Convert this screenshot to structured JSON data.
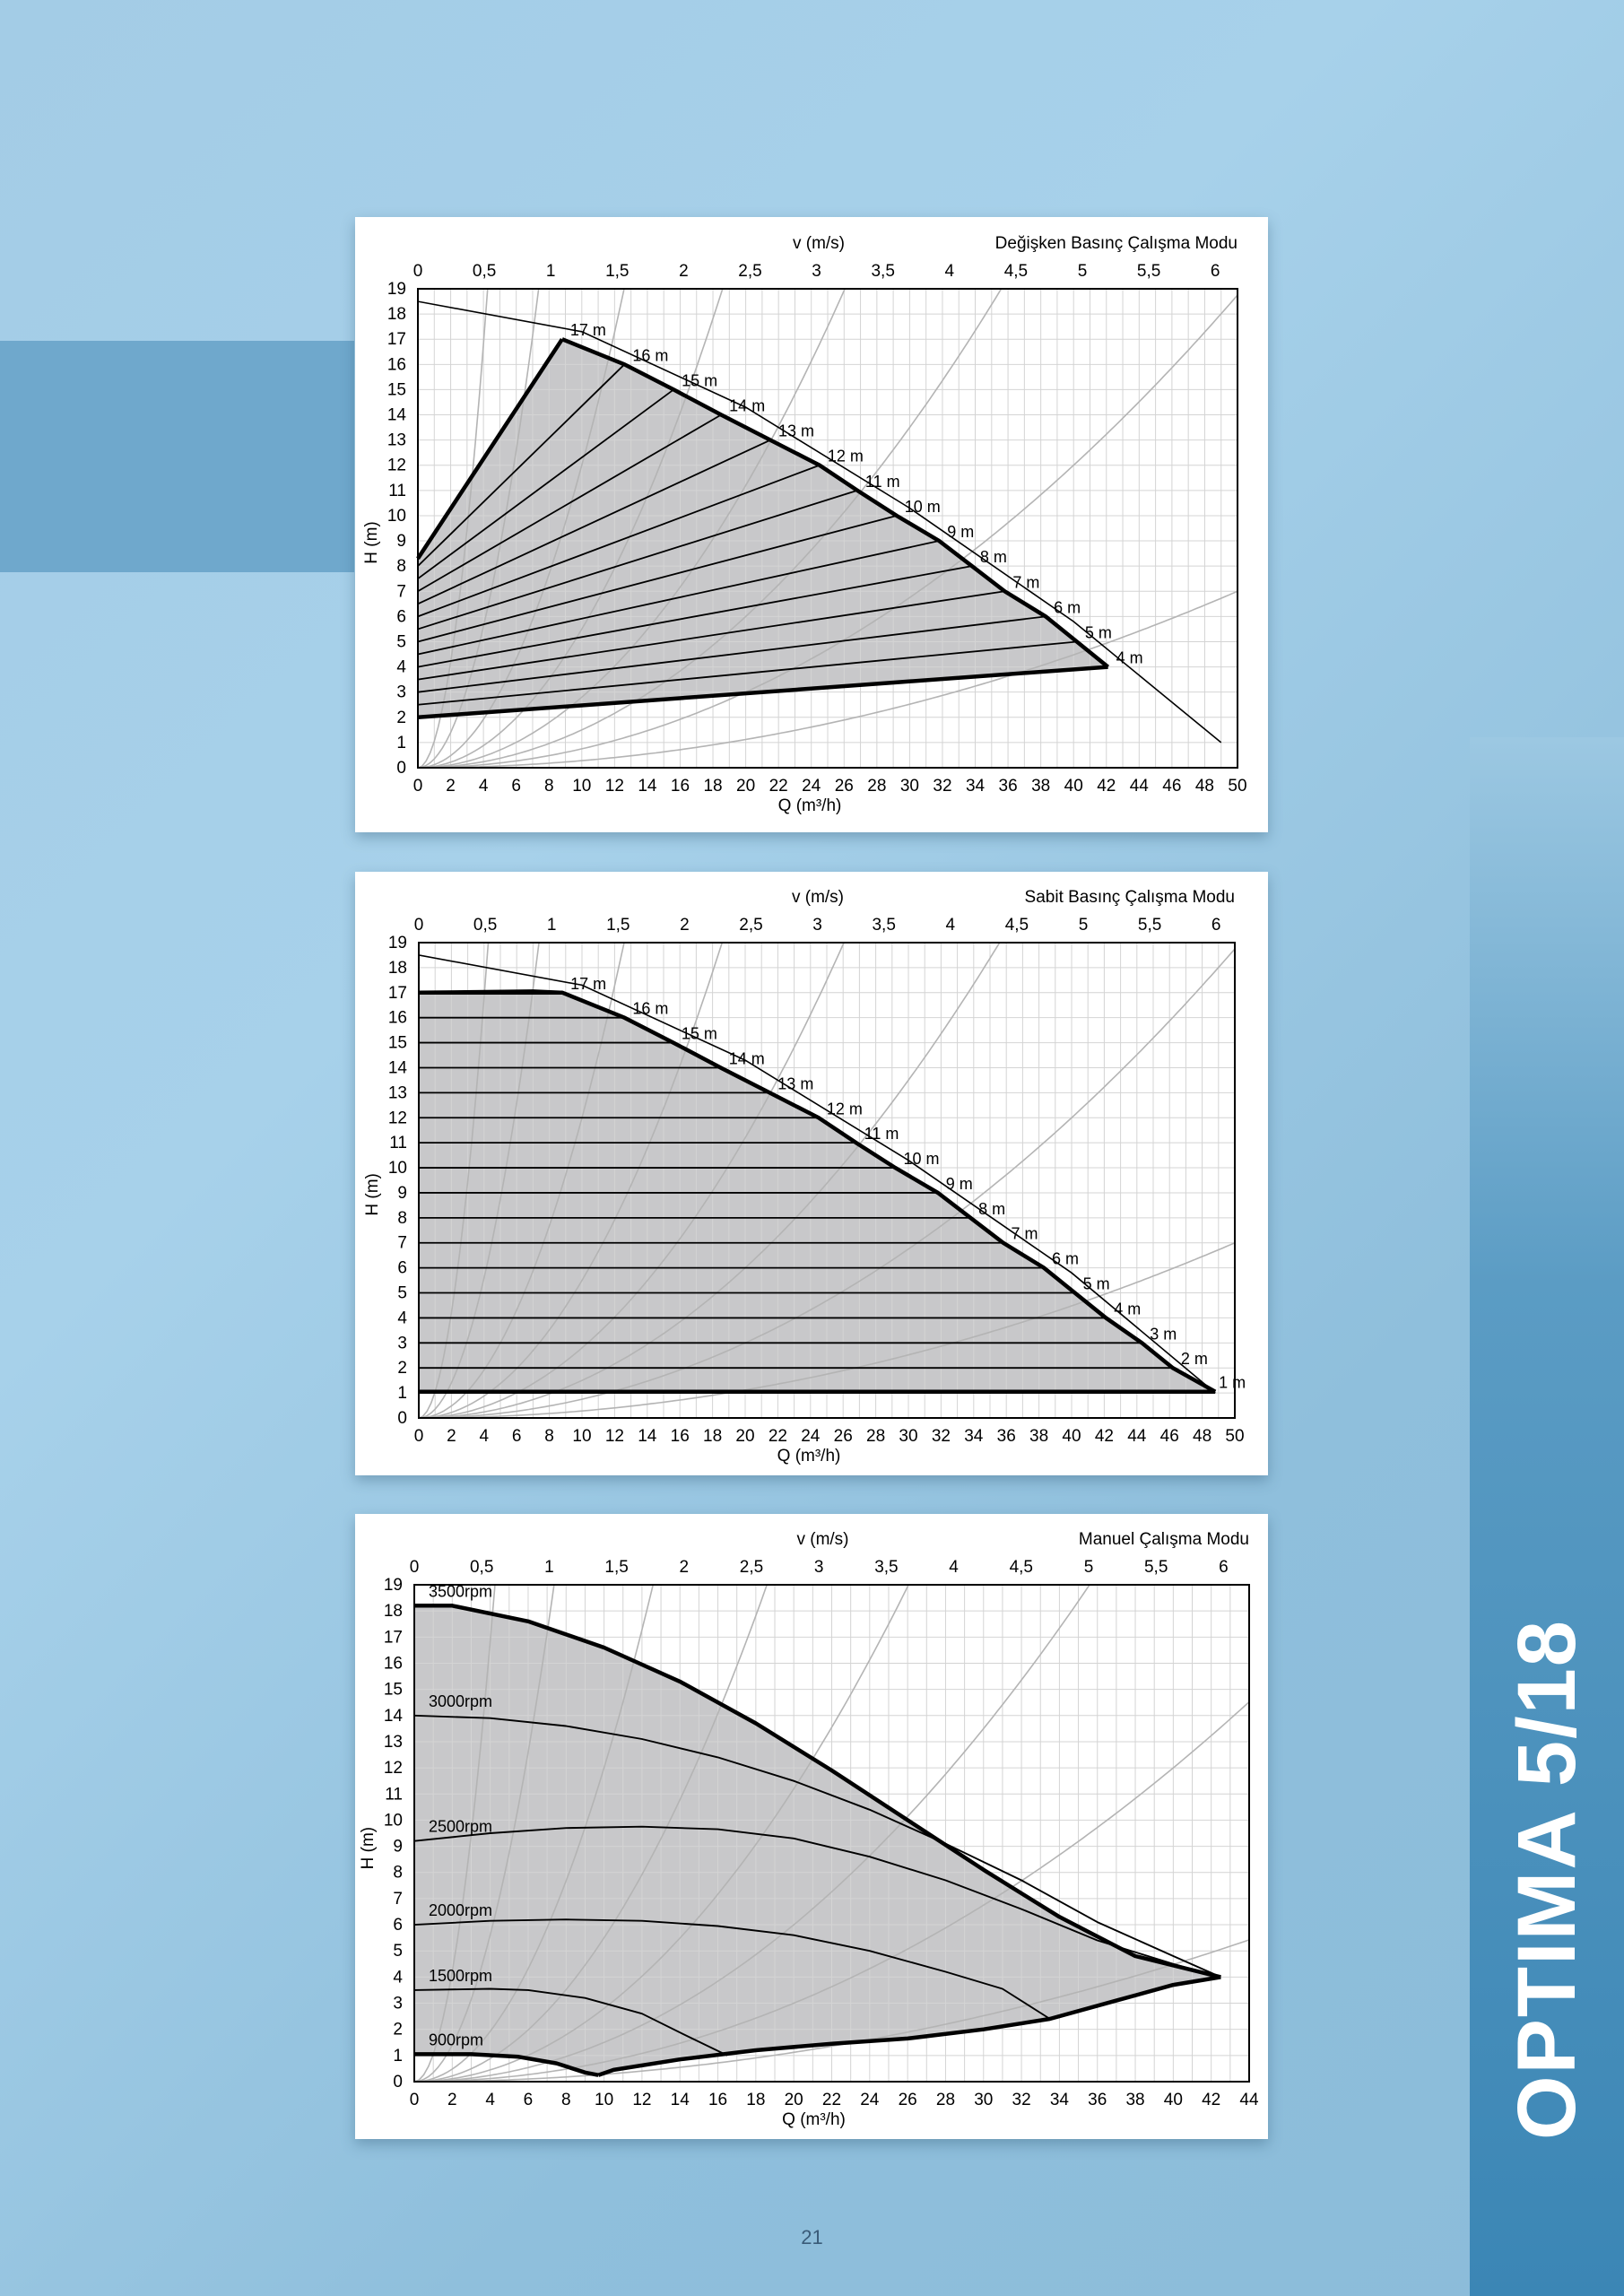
{
  "brand": "OPTIMA 5/18",
  "page_number": "21",
  "chart_data": [
    {
      "type": "line",
      "title": "Değişken Basınç Çalışma Modu",
      "top_axis_label": "v (m/s)",
      "top_ticks": [
        "0",
        "0,5",
        "1",
        "1,5",
        "2",
        "2,5",
        "3",
        "3,5",
        "4",
        "4,5",
        "5",
        "5,5",
        "6"
      ],
      "xlabel": "Q (m³/h)",
      "ylabel": "H (m)",
      "xlim": [
        0,
        50
      ],
      "ylim": [
        0,
        19
      ],
      "x_ticks": [
        0,
        2,
        4,
        6,
        8,
        10,
        12,
        14,
        16,
        18,
        20,
        22,
        24,
        26,
        28,
        30,
        32,
        34,
        36,
        38,
        40,
        42,
        44,
        46,
        48,
        50
      ],
      "y_ticks": [
        0,
        1,
        2,
        3,
        4,
        5,
        6,
        7,
        8,
        9,
        10,
        11,
        12,
        13,
        14,
        15,
        16,
        17,
        18,
        19
      ],
      "grid": true,
      "region_fill": "#c8c8ca",
      "max_curve": [
        [
          0,
          18.5
        ],
        [
          10,
          17.3
        ],
        [
          20,
          14.3
        ],
        [
          30,
          10.3
        ],
        [
          40,
          5.8
        ],
        [
          49,
          1.0
        ]
      ],
      "boundary": [
        [
          0,
          8.3
        ],
        [
          8.8,
          17
        ],
        [
          12.6,
          16
        ],
        [
          15.6,
          15
        ],
        [
          18.5,
          14
        ],
        [
          21.5,
          13
        ],
        [
          24.5,
          12
        ],
        [
          26.8,
          11
        ],
        [
          29.2,
          10
        ],
        [
          31.8,
          9
        ],
        [
          33.8,
          8
        ],
        [
          35.8,
          7
        ],
        [
          38.3,
          6
        ],
        [
          40.2,
          5
        ],
        [
          42.1,
          4
        ],
        [
          0,
          2
        ]
      ],
      "fan_lines": [
        {
          "label": "17 m",
          "start": [
            0,
            8.3
          ],
          "end": [
            8.8,
            17
          ]
        },
        {
          "label": "16 m",
          "start": [
            0,
            8.0
          ],
          "end": [
            12.6,
            16
          ]
        },
        {
          "label": "15 m",
          "start": [
            0,
            7.5
          ],
          "end": [
            15.6,
            15
          ]
        },
        {
          "label": "14 m",
          "start": [
            0,
            7.0
          ],
          "end": [
            18.5,
            14
          ]
        },
        {
          "label": "13 m",
          "start": [
            0,
            6.5
          ],
          "end": [
            21.5,
            13
          ]
        },
        {
          "label": "12 m",
          "start": [
            0,
            6.0
          ],
          "end": [
            24.5,
            12
          ]
        },
        {
          "label": "11 m",
          "start": [
            0,
            5.5
          ],
          "end": [
            26.8,
            11
          ]
        },
        {
          "label": "10 m",
          "start": [
            0,
            5.0
          ],
          "end": [
            29.2,
            10
          ]
        },
        {
          "label": "9 m",
          "start": [
            0,
            4.5
          ],
          "end": [
            31.8,
            9
          ]
        },
        {
          "label": "8 m",
          "start": [
            0,
            4.0
          ],
          "end": [
            33.8,
            8
          ]
        },
        {
          "label": "7 m",
          "start": [
            0,
            3.5
          ],
          "end": [
            35.8,
            7
          ]
        },
        {
          "label": "6 m",
          "start": [
            0,
            3.0
          ],
          "end": [
            38.3,
            6
          ]
        },
        {
          "label": "5 m",
          "start": [
            0,
            2.5
          ],
          "end": [
            40.2,
            5
          ]
        },
        {
          "label": "4 m",
          "start": [
            0,
            2.0
          ],
          "end": [
            42.1,
            4
          ]
        }
      ],
      "system_curve_k": [
        1.05,
        0.35,
        0.12,
        0.055,
        0.028,
        0.015,
        0.0075,
        0.0028
      ]
    },
    {
      "type": "line",
      "title": "Sabit Basınç Çalışma Modu",
      "top_axis_label": "v (m/s)",
      "top_ticks": [
        "0",
        "0,5",
        "1",
        "1,5",
        "2",
        "2,5",
        "3",
        "3,5",
        "4",
        "4,5",
        "5",
        "5,5",
        "6"
      ],
      "xlabel": "Q (m³/h)",
      "ylabel": "H (m)",
      "xlim": [
        0,
        50
      ],
      "ylim": [
        0,
        19
      ],
      "x_ticks": [
        0,
        2,
        4,
        6,
        8,
        10,
        12,
        14,
        16,
        18,
        20,
        22,
        24,
        26,
        28,
        30,
        32,
        34,
        36,
        38,
        40,
        42,
        44,
        46,
        48,
        50
      ],
      "y_ticks": [
        0,
        1,
        2,
        3,
        4,
        5,
        6,
        7,
        8,
        9,
        10,
        11,
        12,
        13,
        14,
        15,
        16,
        17,
        18,
        19
      ],
      "grid": true,
      "region_fill": "#c8c8ca",
      "max_curve": [
        [
          0,
          18.5
        ],
        [
          10,
          17.3
        ],
        [
          20,
          14.3
        ],
        [
          30,
          10.3
        ],
        [
          40,
          5.8
        ],
        [
          48.8,
          1.0
        ]
      ],
      "boundary": [
        [
          0,
          17
        ],
        [
          7,
          17.05
        ],
        [
          8.8,
          17
        ],
        [
          12.6,
          16
        ],
        [
          15.6,
          15
        ],
        [
          18.5,
          14
        ],
        [
          21.5,
          13
        ],
        [
          24.5,
          12
        ],
        [
          26.8,
          11
        ],
        [
          29.2,
          10
        ],
        [
          31.8,
          9
        ],
        [
          33.8,
          8
        ],
        [
          35.8,
          7
        ],
        [
          38.3,
          6
        ],
        [
          40.2,
          5
        ],
        [
          42.1,
          4
        ],
        [
          44.3,
          3
        ],
        [
          46.2,
          2
        ],
        [
          48.8,
          1.05
        ],
        [
          0,
          1.05
        ]
      ],
      "flat_lines": [
        {
          "label": "17 m",
          "y": 17,
          "end": 8.8
        },
        {
          "label": "16 m",
          "y": 16,
          "end": 12.6
        },
        {
          "label": "15 m",
          "y": 15,
          "end": 15.6
        },
        {
          "label": "14 m",
          "y": 14,
          "end": 18.5
        },
        {
          "label": "13 m",
          "y": 13,
          "end": 21.5
        },
        {
          "label": "12 m",
          "y": 12,
          "end": 24.5
        },
        {
          "label": "11 m",
          "y": 11,
          "end": 26.8
        },
        {
          "label": "10 m",
          "y": 10,
          "end": 29.2
        },
        {
          "label": "9 m",
          "y": 9,
          "end": 31.8
        },
        {
          "label": "8 m",
          "y": 8,
          "end": 33.8
        },
        {
          "label": "7 m",
          "y": 7,
          "end": 35.8
        },
        {
          "label": "6 m",
          "y": 6,
          "end": 38.3
        },
        {
          "label": "5 m",
          "y": 5,
          "end": 40.2
        },
        {
          "label": "4 m",
          "y": 4,
          "end": 42.1
        },
        {
          "label": "3 m",
          "y": 3,
          "end": 44.3
        },
        {
          "label": "2 m",
          "y": 2,
          "end": 46.2
        },
        {
          "label": "1 m",
          "y": 1.05,
          "end": 48.8
        }
      ],
      "system_curve_k": [
        1.05,
        0.35,
        0.12,
        0.055,
        0.028,
        0.015,
        0.0075,
        0.0028
      ]
    },
    {
      "type": "line",
      "title": "Manuel Çalışma Modu",
      "top_axis_label": "v (m/s)",
      "top_ticks": [
        "0",
        "0,5",
        "1",
        "1,5",
        "2",
        "2,5",
        "3",
        "3,5",
        "4",
        "4,5",
        "5",
        "5,5",
        "6"
      ],
      "xlabel": "Q (m³/h)",
      "ylabel": "H (m)",
      "xlim": [
        0,
        44
      ],
      "ylim": [
        0,
        19
      ],
      "x_ticks": [
        0,
        2,
        4,
        6,
        8,
        10,
        12,
        14,
        16,
        18,
        20,
        22,
        24,
        26,
        28,
        30,
        32,
        34,
        36,
        38,
        40,
        42,
        44
      ],
      "y_ticks": [
        0,
        1,
        2,
        3,
        4,
        5,
        6,
        7,
        8,
        9,
        10,
        11,
        12,
        13,
        14,
        15,
        16,
        17,
        18,
        19
      ],
      "grid": true,
      "region_fill": "#c8c8ca",
      "series": [
        {
          "name": "3500rpm",
          "points": [
            [
              0,
              18.2
            ],
            [
              2,
              18.2
            ],
            [
              6,
              17.6
            ],
            [
              10,
              16.6
            ],
            [
              14,
              15.3
            ],
            [
              18,
              13.7
            ],
            [
              22,
              11.9
            ],
            [
              26,
              10.0
            ],
            [
              30,
              8.1
            ],
            [
              34,
              6.3
            ],
            [
              38,
              4.8
            ],
            [
              42.5,
              4.0
            ]
          ]
        },
        {
          "name": "3000rpm",
          "points": [
            [
              0,
              14.0
            ],
            [
              4,
              13.9
            ],
            [
              8,
              13.6
            ],
            [
              12,
              13.1
            ],
            [
              16,
              12.4
            ],
            [
              20,
              11.5
            ],
            [
              24,
              10.4
            ],
            [
              28,
              9.1
            ],
            [
              32,
              7.7
            ],
            [
              36,
              6.1
            ],
            [
              40,
              4.8
            ],
            [
              42.5,
              4.0
            ]
          ]
        },
        {
          "name": "2500rpm",
          "points": [
            [
              0,
              9.2
            ],
            [
              4,
              9.5
            ],
            [
              8,
              9.7
            ],
            [
              12,
              9.75
            ],
            [
              16,
              9.65
            ],
            [
              20,
              9.3
            ],
            [
              24,
              8.6
            ],
            [
              28,
              7.7
            ],
            [
              32,
              6.6
            ],
            [
              36,
              5.4
            ],
            [
              40,
              4.5
            ],
            [
              42.5,
              4.0
            ]
          ]
        },
        {
          "name": "2000rpm",
          "points": [
            [
              0,
              6.0
            ],
            [
              4,
              6.15
            ],
            [
              8,
              6.2
            ],
            [
              12,
              6.15
            ],
            [
              16,
              5.95
            ],
            [
              20,
              5.6
            ],
            [
              24,
              5.0
            ],
            [
              28,
              4.2
            ],
            [
              31,
              3.55
            ],
            [
              33.5,
              2.4
            ]
          ]
        },
        {
          "name": "1500rpm",
          "points": [
            [
              0,
              3.5
            ],
            [
              4,
              3.55
            ],
            [
              6,
              3.5
            ],
            [
              9,
              3.2
            ],
            [
              12,
              2.6
            ],
            [
              14.5,
              1.7
            ],
            [
              16.5,
              1.0
            ]
          ]
        },
        {
          "name": "900rpm",
          "points": [
            [
              0,
              1.05
            ],
            [
              3,
              1.05
            ],
            [
              5.5,
              0.95
            ],
            [
              7.5,
              0.7
            ],
            [
              9,
              0.35
            ],
            [
              9.7,
              0.25
            ]
          ]
        }
      ],
      "envelope_lower": [
        [
          9.7,
          0.25
        ],
        [
          10.5,
          0.45
        ],
        [
          14,
          0.85
        ],
        [
          18,
          1.2
        ],
        [
          22,
          1.45
        ],
        [
          26,
          1.65
        ],
        [
          30,
          2.0
        ],
        [
          33.5,
          2.4
        ],
        [
          37,
          3.1
        ],
        [
          40,
          3.7
        ],
        [
          42.5,
          4.0
        ]
      ],
      "system_curve_k": [
        1.05,
        0.35,
        0.12,
        0.055,
        0.028,
        0.015,
        0.0075,
        0.0028
      ]
    }
  ]
}
